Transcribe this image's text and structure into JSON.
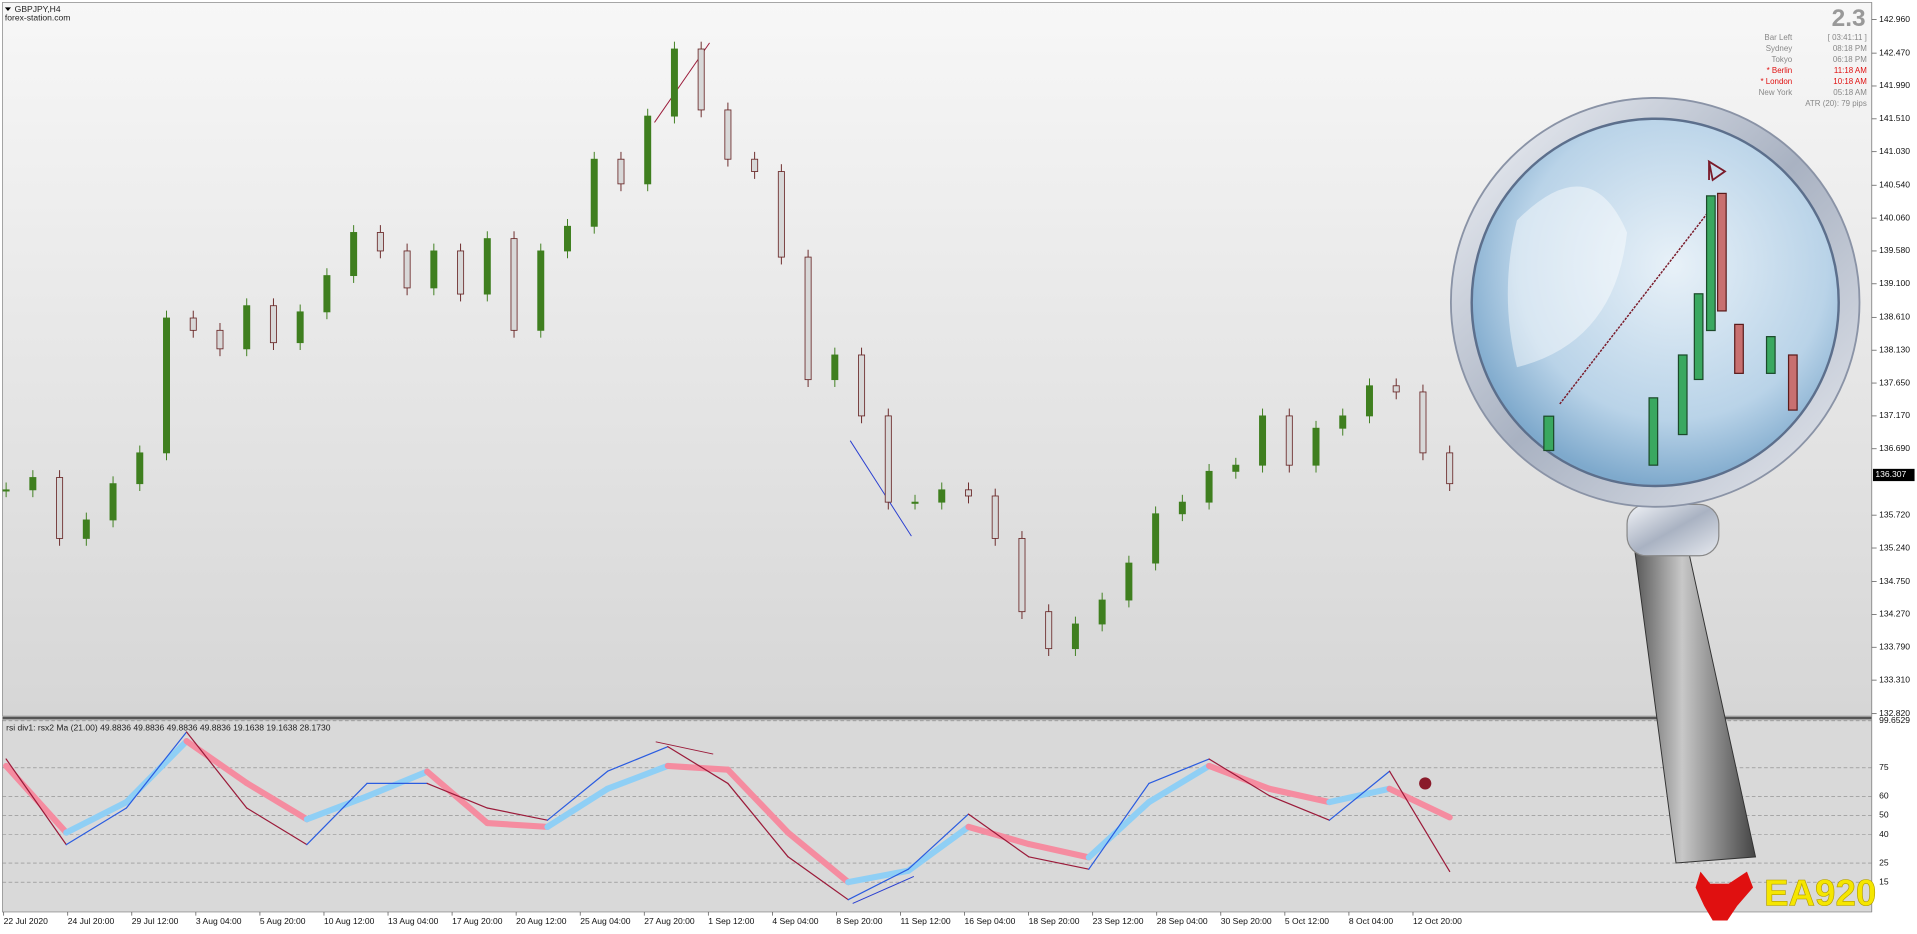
{
  "header": {
    "symbol": "GBPJPY,H4",
    "source": "forex-station.com"
  },
  "info_panel": {
    "value": "2.3",
    "rows": [
      {
        "label": "Bar Left",
        "value": "[ 03:41:11 ]",
        "alert": false
      },
      {
        "label": "Sydney",
        "value": "08:18 PM",
        "alert": false
      },
      {
        "label": "Tokyo",
        "value": "06:18 PM",
        "alert": false
      },
      {
        "label": "* Berlin",
        "value": "11:18 AM",
        "alert": true
      },
      {
        "label": "* London",
        "value": "10:18 AM",
        "alert": true
      },
      {
        "label": "New York",
        "value": "05:18 AM",
        "alert": false
      }
    ],
    "atr": "ATR (20): 79 pips"
  },
  "time_axis": [
    "22 Jul 2020",
    "24 Jul 20:00",
    "29 Jul 12:00",
    "3 Aug 04:00",
    "5 Aug 20:00",
    "10 Aug 12:00",
    "13 Aug 04:00",
    "17 Aug 20:00",
    "20 Aug 12:00",
    "25 Aug 04:00",
    "27 Aug 20:00",
    "1 Sep 12:00",
    "4 Sep 04:00",
    "8 Sep 20:00",
    "11 Sep 12:00",
    "16 Sep 04:00",
    "18 Sep 20:00",
    "23 Sep 12:00",
    "28 Sep 04:00",
    "30 Sep 20:00",
    "5 Oct 12:00",
    "8 Oct 04:00",
    "12 Oct 20:00"
  ],
  "logo": "EA920",
  "chart_data": [
    {
      "type": "candlestick",
      "up_color": "#3f7f1f",
      "down_color": "#6b2a2a",
      "values": [
        136.09,
        136.27,
        135.38,
        135.65,
        136.18,
        136.63,
        138.6,
        138.42,
        138.15,
        138.78,
        138.24,
        138.69,
        139.22,
        139.85,
        139.58,
        139.04,
        139.58,
        138.95,
        139.76,
        138.42,
        139.58,
        139.94,
        140.92,
        140.56,
        141.55,
        142.53,
        141.64,
        140.92,
        140.74,
        139.49,
        137.7,
        138.06,
        137.17,
        135.91,
        135.91,
        136.09,
        136.0,
        135.38,
        134.31,
        133.77,
        134.13,
        134.48,
        135.02,
        135.74,
        135.91,
        136.36,
        136.45,
        137.17,
        136.45,
        136.99,
        137.17,
        137.61,
        137.52,
        136.63,
        136.18
      ],
      "ylim": [
        132.82,
        142.96
      ],
      "yticks": [
        {
          "value": 142.96,
          "label": "142.960"
        },
        {
          "value": 142.47,
          "label": "142.470"
        },
        {
          "value": 141.99,
          "label": "141.990"
        },
        {
          "value": 141.51,
          "label": "141.510"
        },
        {
          "value": 141.03,
          "label": "141.030"
        },
        {
          "value": 140.54,
          "label": "140.540"
        },
        {
          "value": 140.06,
          "label": "140.060"
        },
        {
          "value": 139.58,
          "label": "139.580"
        },
        {
          "value": 139.1,
          "label": "139.100"
        },
        {
          "value": 138.61,
          "label": "138.610"
        },
        {
          "value": 138.13,
          "label": "138.130"
        },
        {
          "value": 137.65,
          "label": "137.650"
        },
        {
          "value": 137.17,
          "label": "137.170"
        },
        {
          "value": 136.69,
          "label": "136.690"
        },
        {
          "value": 135.72,
          "label": "135.720"
        },
        {
          "value": 135.24,
          "label": "135.240"
        },
        {
          "value": 134.75,
          "label": "134.750"
        },
        {
          "value": 134.27,
          "label": "134.270"
        },
        {
          "value": 133.79,
          "label": "133.790"
        },
        {
          "value": 133.31,
          "label": "133.310"
        },
        {
          "value": 132.82,
          "label": "132.820"
        }
      ],
      "current_price": 136.307
    },
    {
      "type": "line",
      "title": "rsi div1: rsx2 Ma (21.00) 49.8836 49.8836 49.8836 49.8836 19.1638 19.1638 28.1730",
      "series": [
        {
          "rise_color": "#2a5ce0",
          "fall_color": "#9b1b3a",
          "width": 1,
          "values": [
            79.6,
            34.7,
            53.9,
            93.8,
            53.9,
            34.7,
            66.8,
            66.8,
            53.9,
            47.5,
            73.2,
            86.1,
            66.8,
            28.3,
            5.8,
            21.8,
            50.7,
            28.3,
            21.8,
            66.8,
            79.6,
            60.4,
            47.5,
            73.2,
            20.6
          ]
        },
        {
          "rise_color": "#8fcff5",
          "fall_color": "#f58ca0",
          "width": 5,
          "values": [
            76,
            41,
            57,
            89,
            67,
            48,
            60,
            73,
            46,
            44,
            64,
            76,
            74,
            41,
            15,
            21,
            44,
            35,
            28,
            57,
            76,
            64,
            57,
            64,
            49
          ]
        }
      ],
      "ylim": [
        0,
        100
      ],
      "yticks": [
        99.6529,
        75,
        60,
        50,
        40,
        25,
        15
      ]
    }
  ]
}
